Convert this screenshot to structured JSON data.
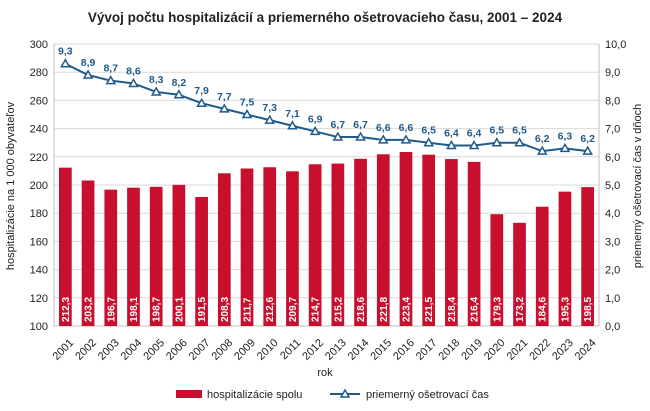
{
  "chart_data": {
    "type": "bar",
    "title": "Vývoj počtu hospitalizácií a priemerného ošetrovacieho času, 2001 – 2024",
    "xlabel": "rok",
    "ylabel": "hospitalizácie na 1 000 obyvateľov",
    "y2label": "priemerný ošetrovací čas v dňoch",
    "ylim": [
      100,
      300
    ],
    "y_ticks": [
      100,
      120,
      140,
      160,
      180,
      200,
      220,
      240,
      260,
      280,
      300
    ],
    "y2lim": [
      0,
      10
    ],
    "y2_ticks": [
      "0,0",
      "1,0",
      "2,0",
      "3,0",
      "4,0",
      "5,0",
      "6,0",
      "7,0",
      "8,0",
      "9,0",
      "10,0"
    ],
    "grid": true,
    "legend_position": "bottom",
    "categories": [
      "2001",
      "2002",
      "2003",
      "2004",
      "2005",
      "2006",
      "2007",
      "2008",
      "2009",
      "2010",
      "2011",
      "2012",
      "2013",
      "2014",
      "2015",
      "2016",
      "2017",
      "2018",
      "2019",
      "2020",
      "2021",
      "2022",
      "2023",
      "2024"
    ],
    "series": [
      {
        "name": "hospitalizácie spolu",
        "type": "bar",
        "axis": "left",
        "color": "#c8102e",
        "values": [
          212.3,
          203.2,
          196.7,
          198.1,
          198.7,
          200.1,
          191.5,
          208.3,
          211.7,
          212.6,
          209.7,
          214.7,
          215.2,
          218.6,
          221.8,
          223.4,
          221.5,
          218.4,
          216.4,
          179.3,
          173.2,
          184.6,
          195.3,
          198.5
        ],
        "labels": [
          "212,3",
          "203,2",
          "196,7",
          "198,1",
          "198,7",
          "200,1",
          "191,5",
          "208,3",
          "211,7",
          "212,6",
          "209,7",
          "214,7",
          "215,2",
          "218,6",
          "221,8",
          "223,4",
          "221,5",
          "218,4",
          "216,4",
          "179,3",
          "173,2",
          "184,6",
          "195,3",
          "198,5"
        ]
      },
      {
        "name": "priemerný ošetrovací čas",
        "type": "line",
        "axis": "right",
        "color": "#1f5a8a",
        "marker": "triangle",
        "values": [
          9.3,
          8.9,
          8.7,
          8.6,
          8.3,
          8.2,
          7.9,
          7.7,
          7.5,
          7.3,
          7.1,
          6.9,
          6.7,
          6.7,
          6.6,
          6.6,
          6.5,
          6.4,
          6.4,
          6.5,
          6.5,
          6.2,
          6.3,
          6.2
        ],
        "labels": [
          "9,3",
          "8,9",
          "8,7",
          "8,6",
          "8,3",
          "8,2",
          "7,9",
          "7,7",
          "7,5",
          "7,3",
          "7,1",
          "6,9",
          "6,7",
          "6,7",
          "6,6",
          "6,6",
          "6,5",
          "6,4",
          "6,4",
          "6,5",
          "6,5",
          "6,2",
          "6,3",
          "6,2"
        ]
      }
    ]
  }
}
